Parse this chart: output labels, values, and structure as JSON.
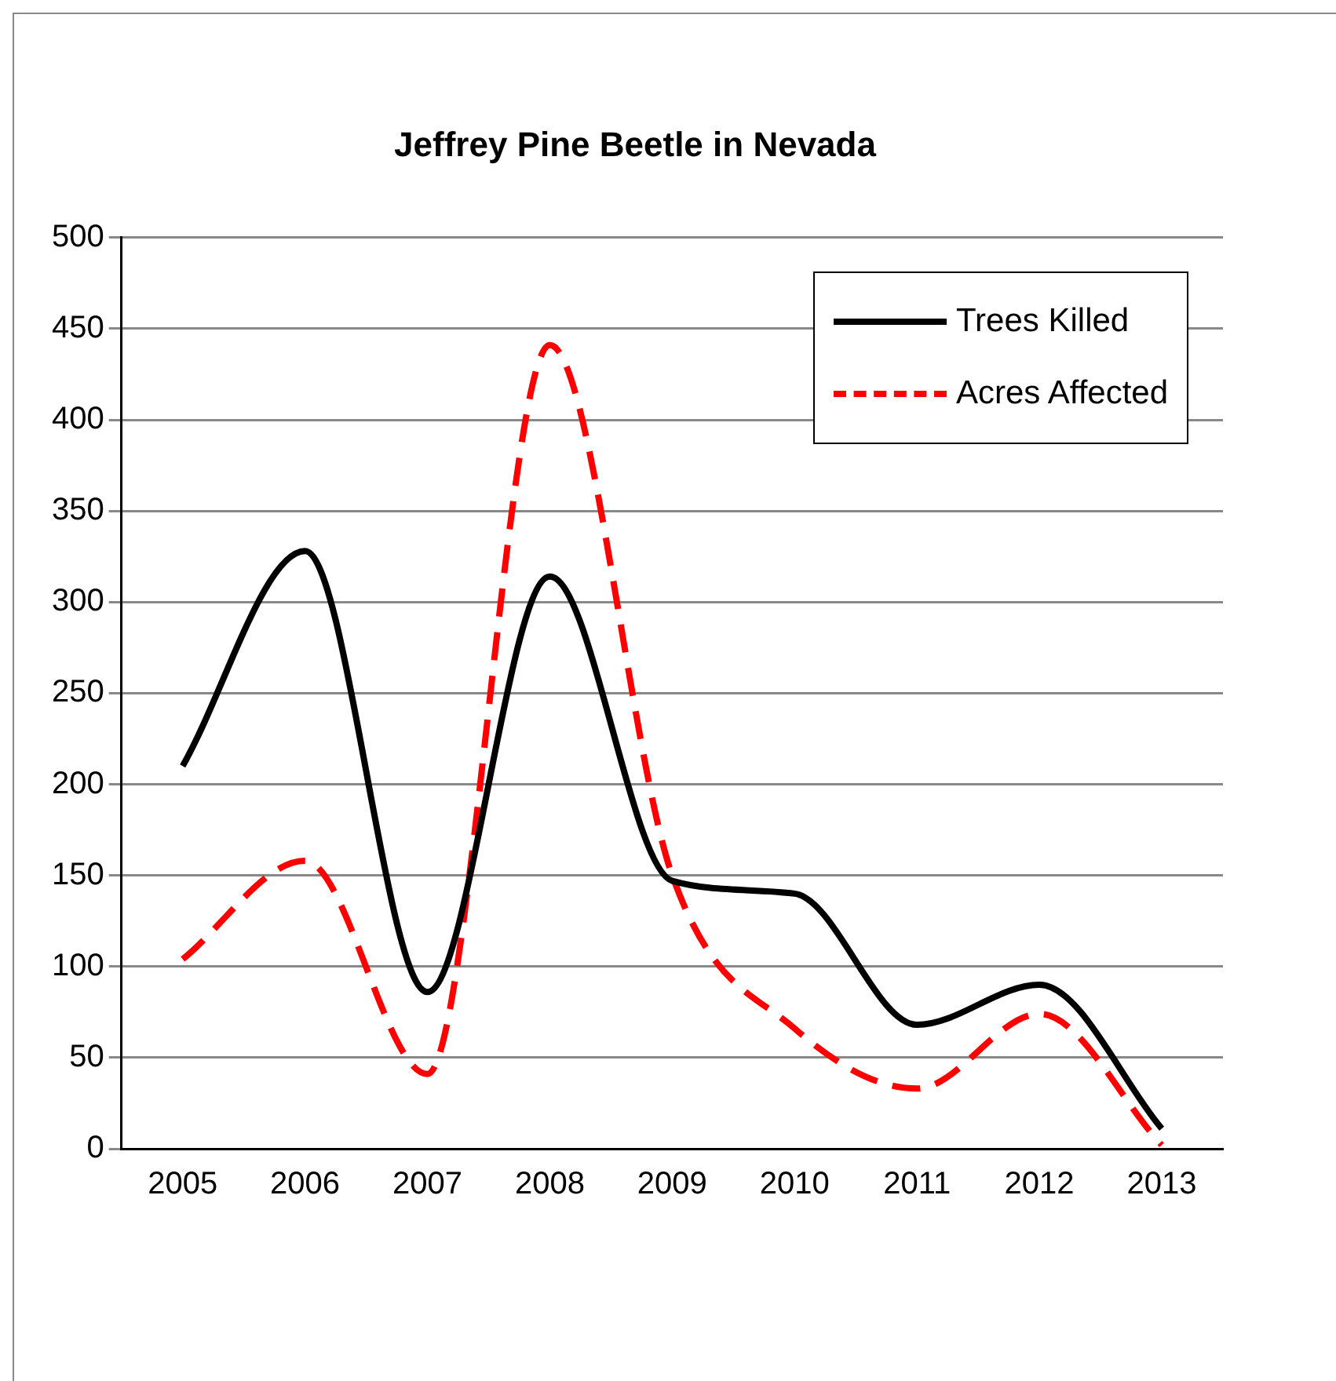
{
  "chart_data": {
    "type": "line",
    "title": "Jeffrey Pine Beetle in Nevada",
    "categories": [
      "2005",
      "2006",
      "2007",
      "2008",
      "2009",
      "2010",
      "2011",
      "2012",
      "2013"
    ],
    "series": [
      {
        "name": "Trees Killed",
        "color": "#000000",
        "values": [
          210,
          328,
          86,
          314,
          147,
          140,
          68,
          90,
          11
        ],
        "line_style": "solid"
      },
      {
        "name": "Acres Affected",
        "color": "#ff0000",
        "values": [
          104,
          158,
          41,
          441,
          150,
          66,
          33,
          74,
          2
        ],
        "line_style": "dashed"
      }
    ],
    "ylim": [
      0,
      500
    ],
    "yticks": [
      0,
      50,
      100,
      150,
      200,
      250,
      300,
      350,
      400,
      450,
      500
    ],
    "grid": "y",
    "legend": "top right",
    "marker": "none"
  }
}
